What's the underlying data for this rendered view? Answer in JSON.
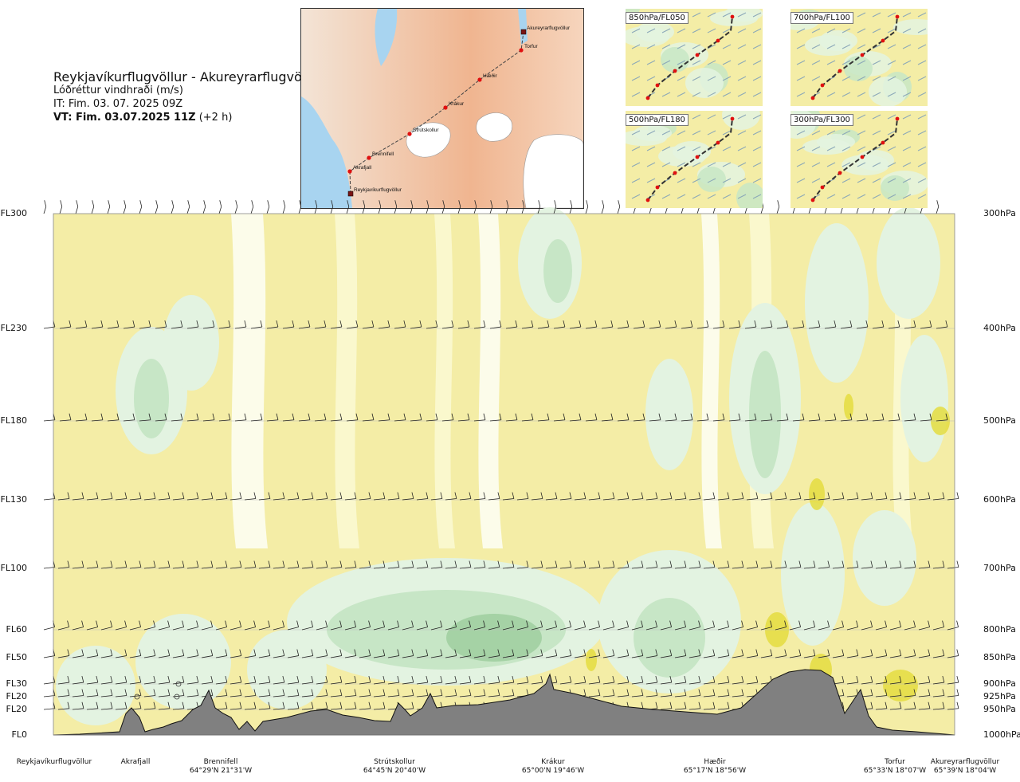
{
  "header": {
    "title": "Reykjavíkurflugvöllur - Akureyrarflugvöllur",
    "variable": "Lóðréttur vindhraði (m/s)",
    "init_time": "IT: Fim. 03. 07. 2025 09Z",
    "valid_prefix": "VT: Fim. 03.07.2025 11Z",
    "valid_suffix": " (+2 h)"
  },
  "route_map": {
    "points": [
      {
        "name": "Akureyrarflugvöllur",
        "kind": "airport"
      },
      {
        "name": "Torfur",
        "kind": "waypoint"
      },
      {
        "name": "Hæðir",
        "kind": "waypoint"
      },
      {
        "name": "Krákur",
        "kind": "waypoint"
      },
      {
        "name": "Strútskollur",
        "kind": "waypoint"
      },
      {
        "name": "Brennifell",
        "kind": "waypoint"
      },
      {
        "name": "Akrafjall",
        "kind": "waypoint"
      },
      {
        "name": "Reykjavíkurflugvöllur",
        "kind": "airport"
      }
    ]
  },
  "mini_maps": [
    "850hPa/FL050",
    "700hPa/FL100",
    "500hPa/FL180",
    "300hPa/FL300"
  ],
  "chart_data": {
    "type": "heatmap",
    "title": "Lóðréttur vindhraði (m/s)",
    "levels": [
      {
        "fl": "FL300",
        "hpa": "300hPa"
      },
      {
        "fl": "FL230",
        "hpa": "400hPa"
      },
      {
        "fl": "FL180",
        "hpa": "500hPa"
      },
      {
        "fl": "FL130",
        "hpa": "600hPa"
      },
      {
        "fl": "FL100",
        "hpa": "700hPa"
      },
      {
        "fl": "FL60",
        "hpa": "800hPa"
      },
      {
        "fl": "FL50",
        "hpa": "850hPa"
      },
      {
        "fl": "FL30",
        "hpa": "900hPa"
      },
      {
        "fl": "FL20",
        "hpa": "925hPa"
      },
      {
        "fl": "FL20",
        "hpa": "950hPa"
      },
      {
        "fl": "FL0",
        "hpa": "1000hPa"
      }
    ],
    "stations": [
      {
        "name": "Reykjavíkurflugvöllur",
        "coord": ""
      },
      {
        "name": "Akrafjall",
        "coord": ""
      },
      {
        "name": "Brennifell",
        "coord": "64°29'N 21°31'W"
      },
      {
        "name": "Strútskollur",
        "coord": "64°45'N 20°40'W"
      },
      {
        "name": "Krákur",
        "coord": "65°00'N 19°46'W"
      },
      {
        "name": "Hæðir",
        "coord": "65°17'N 18°56'W"
      },
      {
        "name": "Torfur",
        "coord": "65°33'N 18°07'W"
      },
      {
        "name": "Akureyrarflugvöllur",
        "coord": "65°39'N 18°04'W"
      }
    ],
    "colors": {
      "sinking": "#f4eda6",
      "weak_sinking": "#fbf8d2",
      "neutral": "#fdfdf2",
      "weak_rising": "#e3f3e1",
      "rising": "#c7e6c6",
      "strong_rising": "#a5d2a5",
      "strong_sinking": "#e4dc40",
      "terrain": "#808080",
      "water": "#a8d4f0"
    }
  }
}
